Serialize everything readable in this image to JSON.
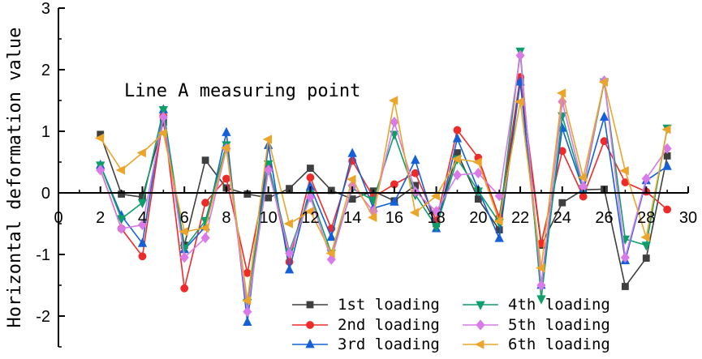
{
  "chart_data": {
    "type": "line",
    "ylabel": "Horizontal deformation value",
    "xlabel": "",
    "annotation": "Line A measuring point",
    "xlim": [
      0,
      30
    ],
    "ylim": [
      -2.5,
      3
    ],
    "x_ticks": [
      0,
      2,
      4,
      6,
      8,
      10,
      12,
      14,
      16,
      18,
      20,
      22,
      24,
      26,
      28,
      30
    ],
    "y_ticks": [
      -2,
      -1,
      0,
      1,
      2,
      3
    ],
    "x_axis_at": 0,
    "grid": false,
    "legend_position": "bottom-right",
    "x": [
      2,
      3,
      4,
      5,
      6,
      7,
      8,
      9,
      10,
      11,
      12,
      13,
      14,
      15,
      16,
      17,
      18,
      19,
      20,
      21,
      22,
      23,
      24,
      25,
      26,
      27,
      28,
      29
    ],
    "series": [
      {
        "name": "1st loading",
        "color": "#3f3f3f",
        "marker": "square",
        "values": [
          0.95,
          -0.02,
          -0.07,
          1.15,
          -0.85,
          0.53,
          0.08,
          -0.02,
          -0.08,
          0.07,
          0.4,
          0.04,
          -0.1,
          0.03,
          -0.13,
          0.12,
          -0.5,
          0.65,
          -0.1,
          -0.6,
          1.82,
          -0.85,
          -0.16,
          0.05,
          0.06,
          -1.52,
          -1.06,
          0.6
        ]
      },
      {
        "name": "2nd loading",
        "color": "#ee2b2b",
        "marker": "circle",
        "values": [
          0.38,
          -0.58,
          -1.03,
          1.25,
          -1.55,
          -0.16,
          0.23,
          -1.3,
          0.45,
          -1.12,
          0.25,
          -0.58,
          0.52,
          -0.07,
          0.14,
          0.32,
          -0.45,
          1.02,
          0.57,
          -0.4,
          1.88,
          -0.82,
          0.68,
          -0.06,
          0.84,
          0.17,
          0.02,
          -0.27
        ]
      },
      {
        "name": "3rd loading",
        "color": "#1560d8",
        "marker": "triangle-up",
        "values": [
          0.45,
          -0.37,
          -0.82,
          1.35,
          -0.92,
          -0.55,
          0.98,
          -2.1,
          0.77,
          -1.25,
          0.1,
          -0.72,
          0.64,
          -0.25,
          -0.15,
          0.53,
          -0.58,
          0.88,
          0.05,
          -0.74,
          1.8,
          -1.5,
          1.05,
          0.05,
          1.23,
          -1.1,
          0.2,
          0.43
        ]
      },
      {
        "name": "4th loading",
        "color": "#0c9f6a",
        "marker": "triangle-down",
        "values": [
          0.45,
          -0.42,
          -0.16,
          1.35,
          -0.9,
          -0.45,
          0.78,
          -1.78,
          0.47,
          -0.95,
          -0.02,
          -0.98,
          0.07,
          -0.12,
          0.95,
          -0.03,
          -0.55,
          0.55,
          0.03,
          -0.48,
          2.3,
          -1.72,
          1.25,
          0.07,
          1.8,
          -0.75,
          -0.85,
          1.05
        ]
      },
      {
        "name": "5th loading",
        "color": "#d87ae8",
        "marker": "diamond",
        "values": [
          0.37,
          -0.58,
          -0.52,
          1.23,
          -1.05,
          -0.73,
          0.72,
          -1.93,
          0.37,
          -0.98,
          -0.07,
          -1.08,
          0.12,
          -0.3,
          1.15,
          0.02,
          -0.3,
          0.29,
          0.32,
          -0.05,
          2.23,
          -1.5,
          1.48,
          0.1,
          1.82,
          -1.05,
          0.23,
          0.72
        ]
      },
      {
        "name": "6th loading",
        "color": "#eaa52a",
        "marker": "triangle-left",
        "values": [
          0.89,
          0.37,
          0.65,
          0.97,
          -0.63,
          -0.57,
          0.73,
          -1.75,
          0.87,
          -0.5,
          -0.3,
          -0.98,
          0.22,
          -0.4,
          1.5,
          -0.32,
          -0.05,
          0.55,
          0.5,
          -0.46,
          1.48,
          -1.22,
          1.62,
          0.25,
          1.8,
          0.36,
          -0.72,
          1.03
        ]
      }
    ]
  }
}
